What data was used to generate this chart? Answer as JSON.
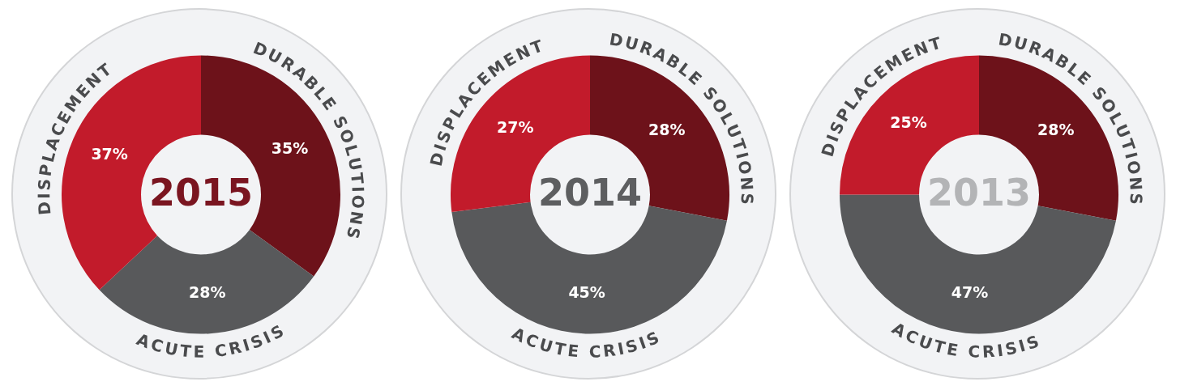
{
  "chart_data": [
    {
      "type": "donut",
      "title": "2015",
      "categories": [
        "DURABLE SOLUTIONS",
        "ACUTE CRISIS",
        "DISPLACEMENT"
      ],
      "values": [
        35,
        28,
        37
      ],
      "colors": [
        "#6d121a",
        "#58595b",
        "#c21b2b"
      ],
      "value_labels": [
        "35%",
        "28%",
        "37%"
      ]
    },
    {
      "type": "donut",
      "title": "2014",
      "categories": [
        "DURABLE SOLUTIONS",
        "ACUTE CRISIS",
        "DISPLACEMENT"
      ],
      "values": [
        28,
        45,
        27
      ],
      "colors": [
        "#6d121a",
        "#58595b",
        "#c21b2b"
      ],
      "value_labels": [
        "28%",
        "45%",
        "27%"
      ]
    },
    {
      "type": "donut",
      "title": "2013",
      "categories": [
        "DURABLE SOLUTIONS",
        "ACUTE CRISIS",
        "DISPLACEMENT"
      ],
      "values": [
        28,
        47,
        25
      ],
      "colors": [
        "#6d121a",
        "#58595b",
        "#c21b2b"
      ],
      "value_labels": [
        "28%",
        "47%",
        "25%"
      ]
    }
  ]
}
